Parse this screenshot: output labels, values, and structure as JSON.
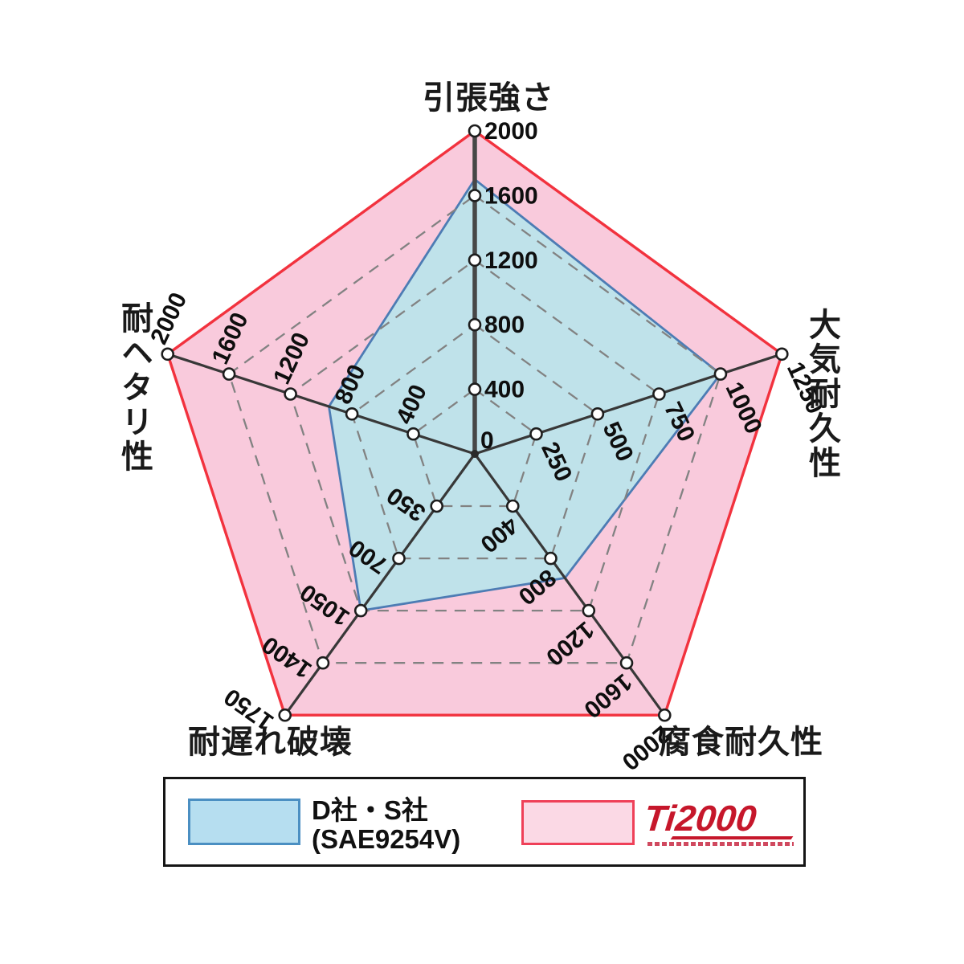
{
  "chart_data": {
    "type": "radar",
    "shape": "pentagon",
    "title": "",
    "grid": {
      "rings": 5,
      "dashed": true,
      "color": "#828282"
    },
    "axes": [
      {
        "label": "引張強さ",
        "max": 2000,
        "ticks": [
          0,
          400,
          800,
          1200,
          1600,
          2000
        ]
      },
      {
        "label": "大気耐久性",
        "max": 1250,
        "ticks": [
          250,
          500,
          750,
          1000,
          1250
        ]
      },
      {
        "label": "腐食耐久性",
        "max": 2000,
        "ticks": [
          400,
          800,
          1200,
          1600,
          2000
        ]
      },
      {
        "label": "耐遅れ破壊",
        "max": 1750,
        "ticks": [
          350,
          700,
          1050,
          1400,
          1750
        ]
      },
      {
        "label": "耐ヘタリ性",
        "max": 2000,
        "ticks": [
          400,
          800,
          1200,
          1600,
          2000
        ]
      }
    ],
    "series": [
      {
        "name": "D社・S社 (SAE9254V)",
        "values": [
          1700,
          1000,
          950,
          1050,
          950
        ],
        "fill": "#bfe2ea",
        "stroke": "#4d7cb4"
      },
      {
        "name": "Ti2000",
        "values": [
          2000,
          1250,
          2000,
          1750,
          2000
        ],
        "fill": "#f9cadc",
        "stroke": "#f2323e"
      }
    ]
  },
  "legend": {
    "series1": {
      "line1": "D社・S社",
      "line2": "(SAE9254V)"
    },
    "series2": {
      "logo": "Ti2000"
    }
  }
}
